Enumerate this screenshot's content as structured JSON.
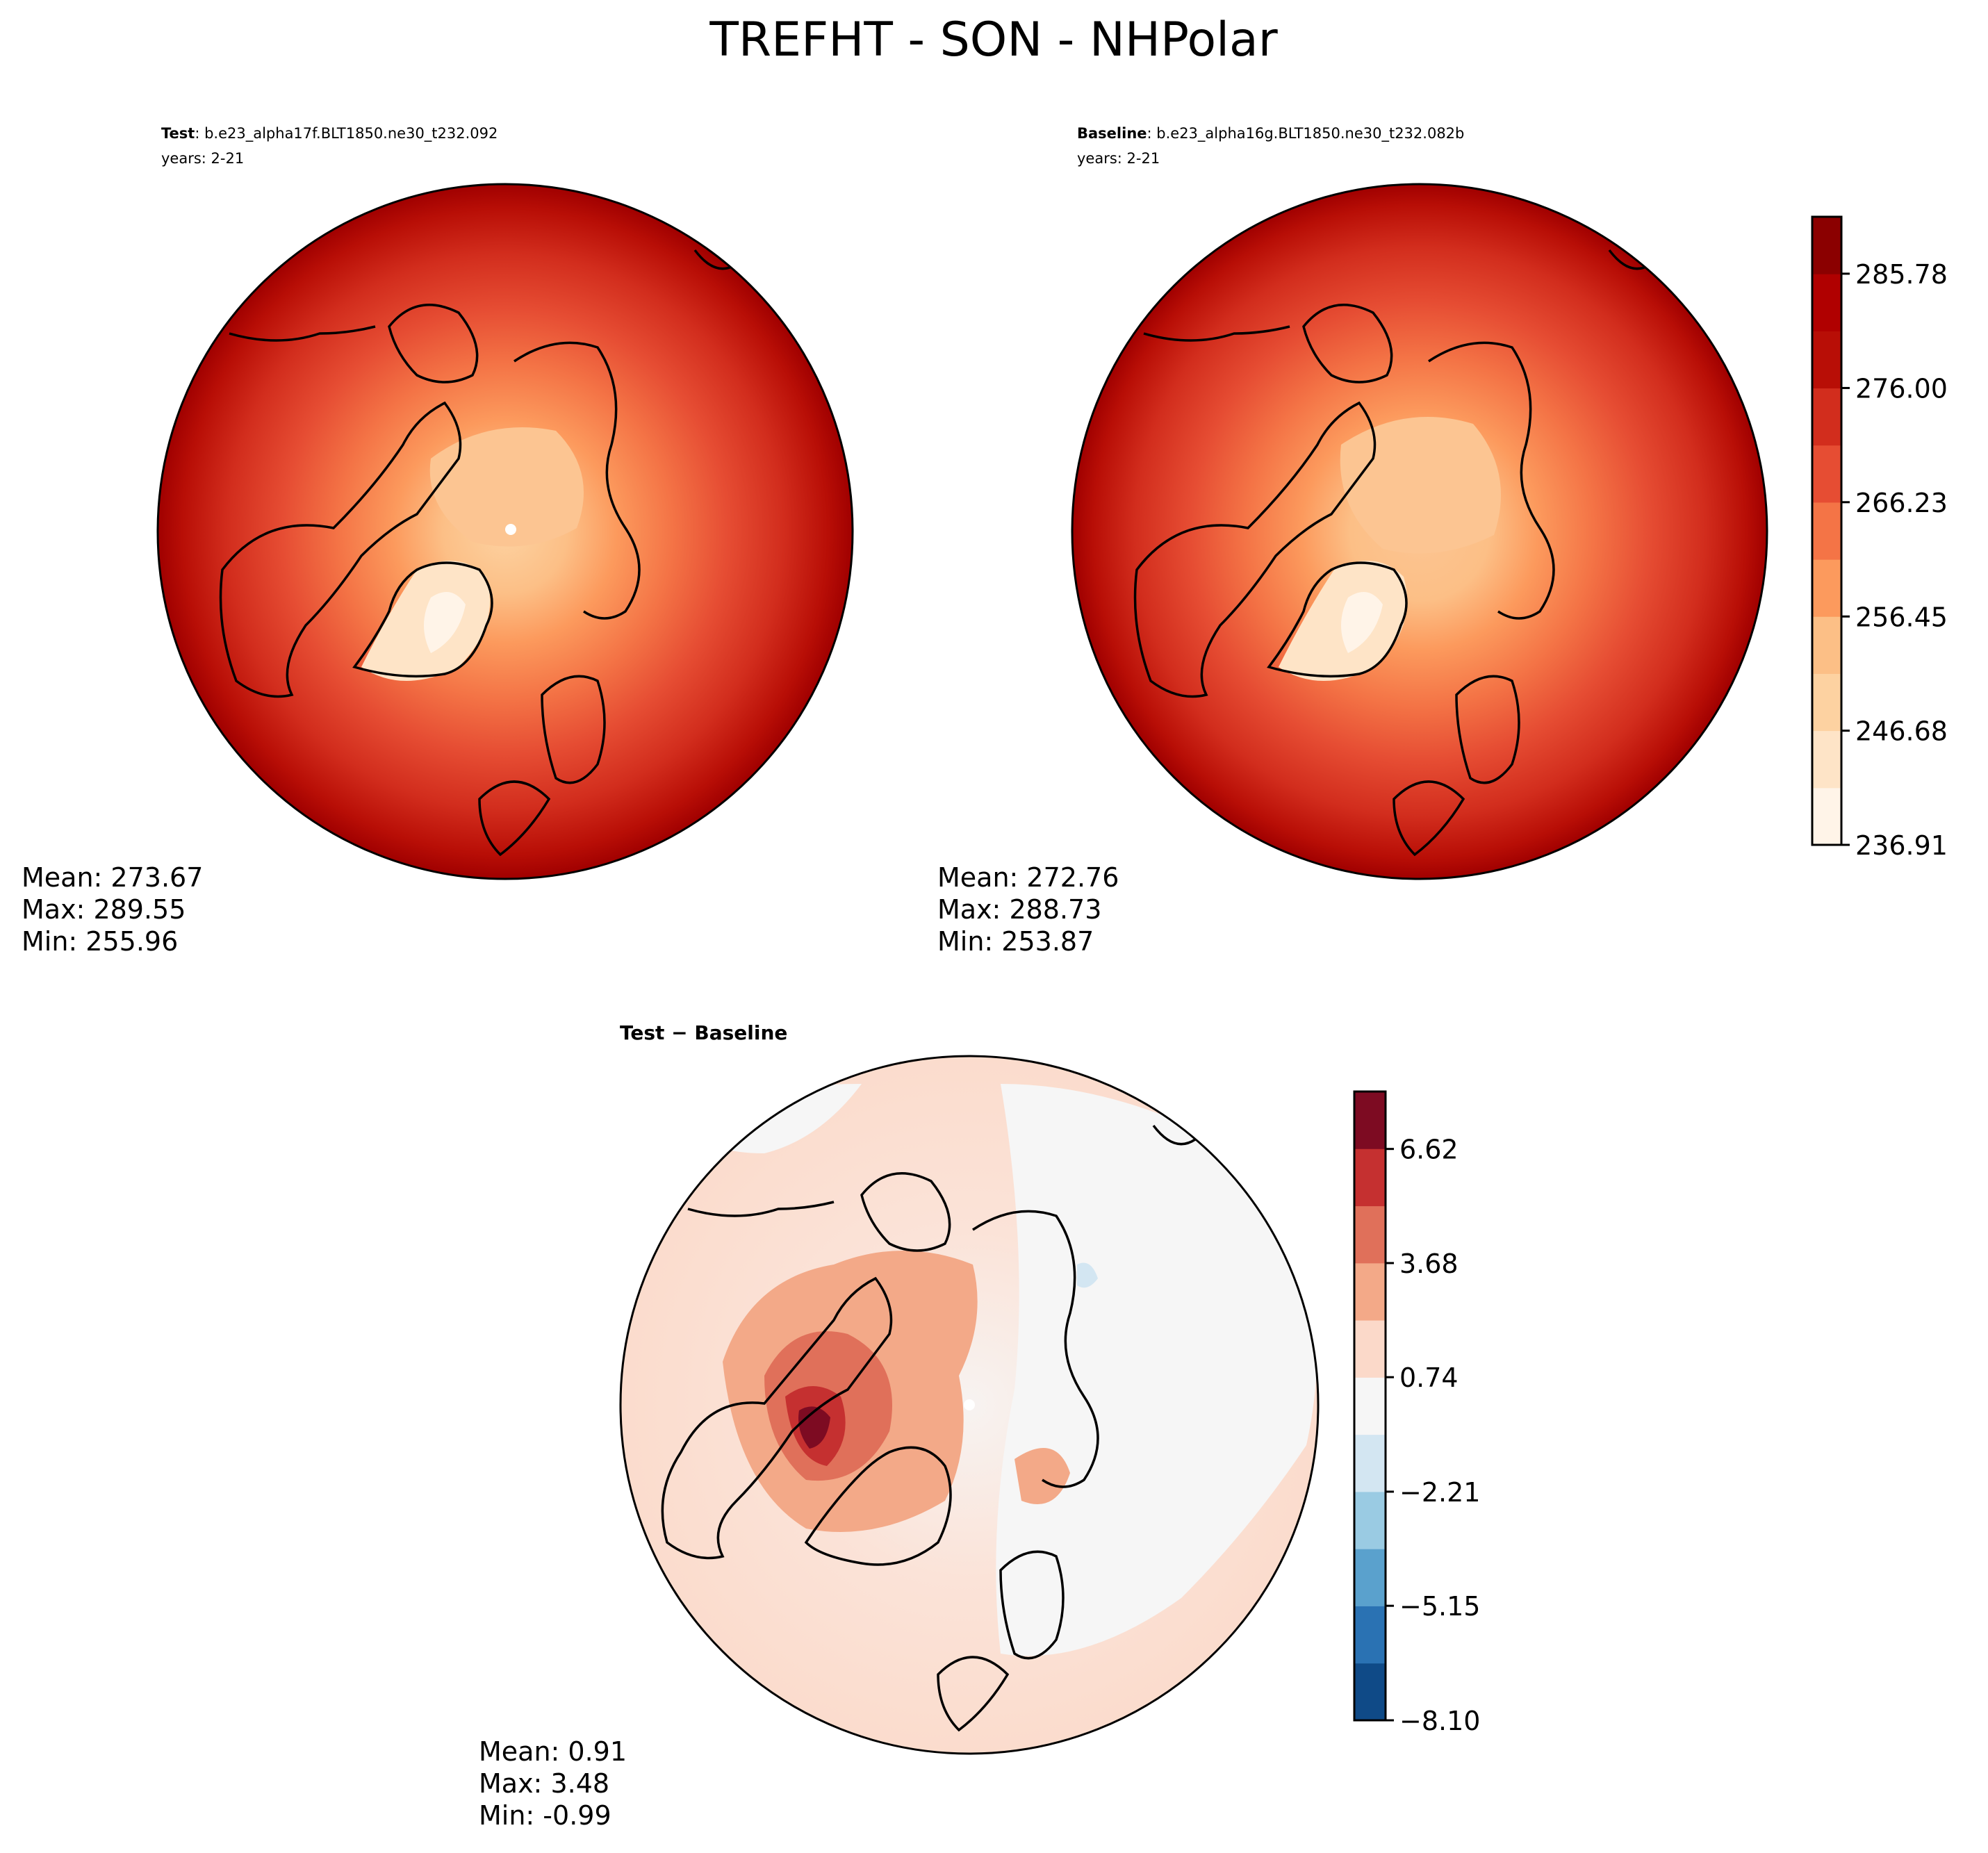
{
  "figure": {
    "title": "TREFHT - SON - NHPolar"
  },
  "chart_data": [
    {
      "type": "heatmap",
      "projection": "north-polar-stereographic",
      "panel": "test",
      "title_bold": "Test",
      "title_case": ": b.e23_alpha17f.BLT1850.ne30_t232.092",
      "years": "years: 2-21",
      "stats": {
        "mean": "Mean: 273.67",
        "max": "Max: 289.55",
        "min": "Min: 255.96"
      }
    },
    {
      "type": "heatmap",
      "projection": "north-polar-stereographic",
      "panel": "baseline",
      "title_bold": "Baseline",
      "title_case": ": b.e23_alpha16g.BLT1850.ne30_t232.082b",
      "years": "years: 2-21",
      "stats": {
        "mean": "Mean: 272.76",
        "max": "Max: 288.73",
        "min": "Min: 253.87"
      }
    },
    {
      "type": "heatmap",
      "projection": "north-polar-stereographic",
      "panel": "difference",
      "title_bold": "Test − Baseline",
      "stats": {
        "mean": "Mean:  0.91",
        "max": "Max:  3.48",
        "min": "Min: -0.99"
      }
    }
  ],
  "colorbars": {
    "main": {
      "levels": 11,
      "range": [
        236.91,
        290.65
      ],
      "tick_values": [
        236.91,
        246.68,
        256.45,
        266.23,
        276.0,
        285.78
      ],
      "tick_labels": [
        "236.91",
        "246.68",
        "256.45",
        "266.23",
        "276.00",
        "285.78"
      ],
      "colors": [
        "#fff4e8",
        "#fee4c7",
        "#fdd2a1",
        "#fcbf86",
        "#fc9a5d",
        "#f47446",
        "#e64d33",
        "#d22d1d",
        "#b80e06",
        "#b00000",
        "#8b0000"
      ]
    },
    "diff": {
      "levels": 11,
      "range": [
        -8.1,
        8.1
      ],
      "tick_values": [
        -8.1,
        -5.15,
        -2.21,
        0.74,
        3.68,
        6.62
      ],
      "tick_labels": [
        "−8.10",
        "−5.15",
        "−2.21",
        "0.74",
        "3.68",
        "6.62"
      ],
      "colors": [
        "#0f4a87",
        "#2a72b3",
        "#5aa1cd",
        "#9acbe3",
        "#d3e6f2",
        "#f6f6f6",
        "#fbd9c9",
        "#f3a988",
        "#e0705a",
        "#c53030",
        "#7d0b22"
      ]
    }
  }
}
